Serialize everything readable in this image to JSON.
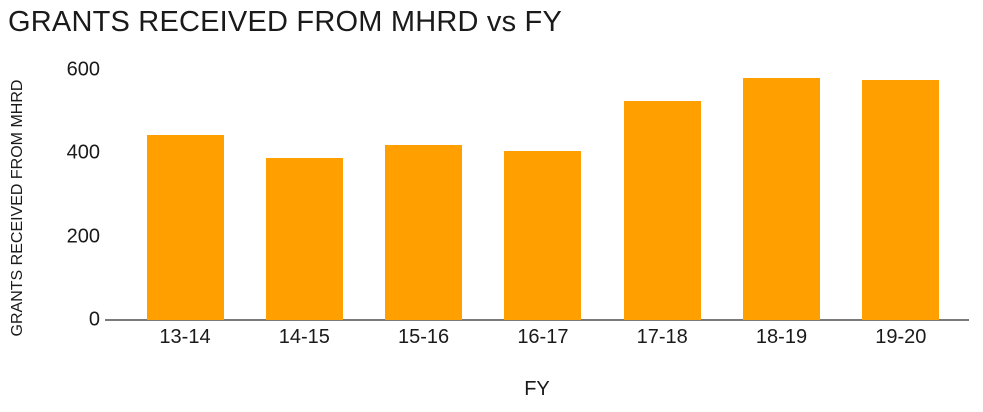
{
  "chart_data": {
    "type": "bar",
    "title": "GRANTS RECEIVED FROM MHRD vs FY",
    "xlabel": "FY",
    "ylabel": "GRANTS RECEIVED FROM MHRD",
    "categories": [
      "13-14",
      "14-15",
      "15-16",
      "16-17",
      "17-18",
      "18-19",
      "19-20"
    ],
    "values": [
      445,
      390,
      420,
      405,
      525,
      580,
      575
    ],
    "ylim": [
      0,
      600
    ],
    "yticks": [
      0,
      200,
      400,
      600
    ],
    "grid": false,
    "legend": "none",
    "colors": {
      "bar": "#FFA000",
      "axis_line": "#7a7a7a",
      "text": "#1a1a1a",
      "background": "#ffffff"
    }
  }
}
